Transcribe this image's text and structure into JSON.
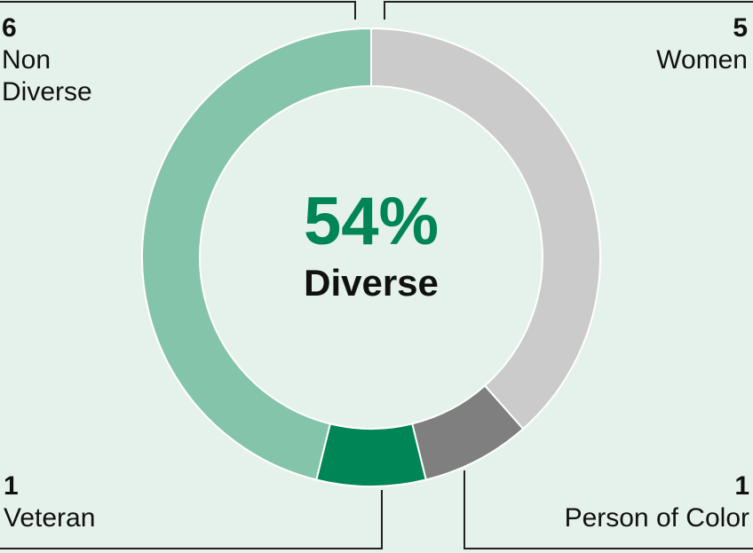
{
  "chart_data": {
    "type": "donut",
    "center_label": "54%",
    "center_subtitle": "Diverse",
    "categories": [
      "Women",
      "Person of Color",
      "Veteran",
      "Non Diverse"
    ],
    "values": [
      5,
      1,
      1,
      6
    ],
    "colors": [
      "#cbcbcb",
      "#7f7f7f",
      "#008556",
      "#84c4aa"
    ],
    "center_color": "#008556"
  }
}
